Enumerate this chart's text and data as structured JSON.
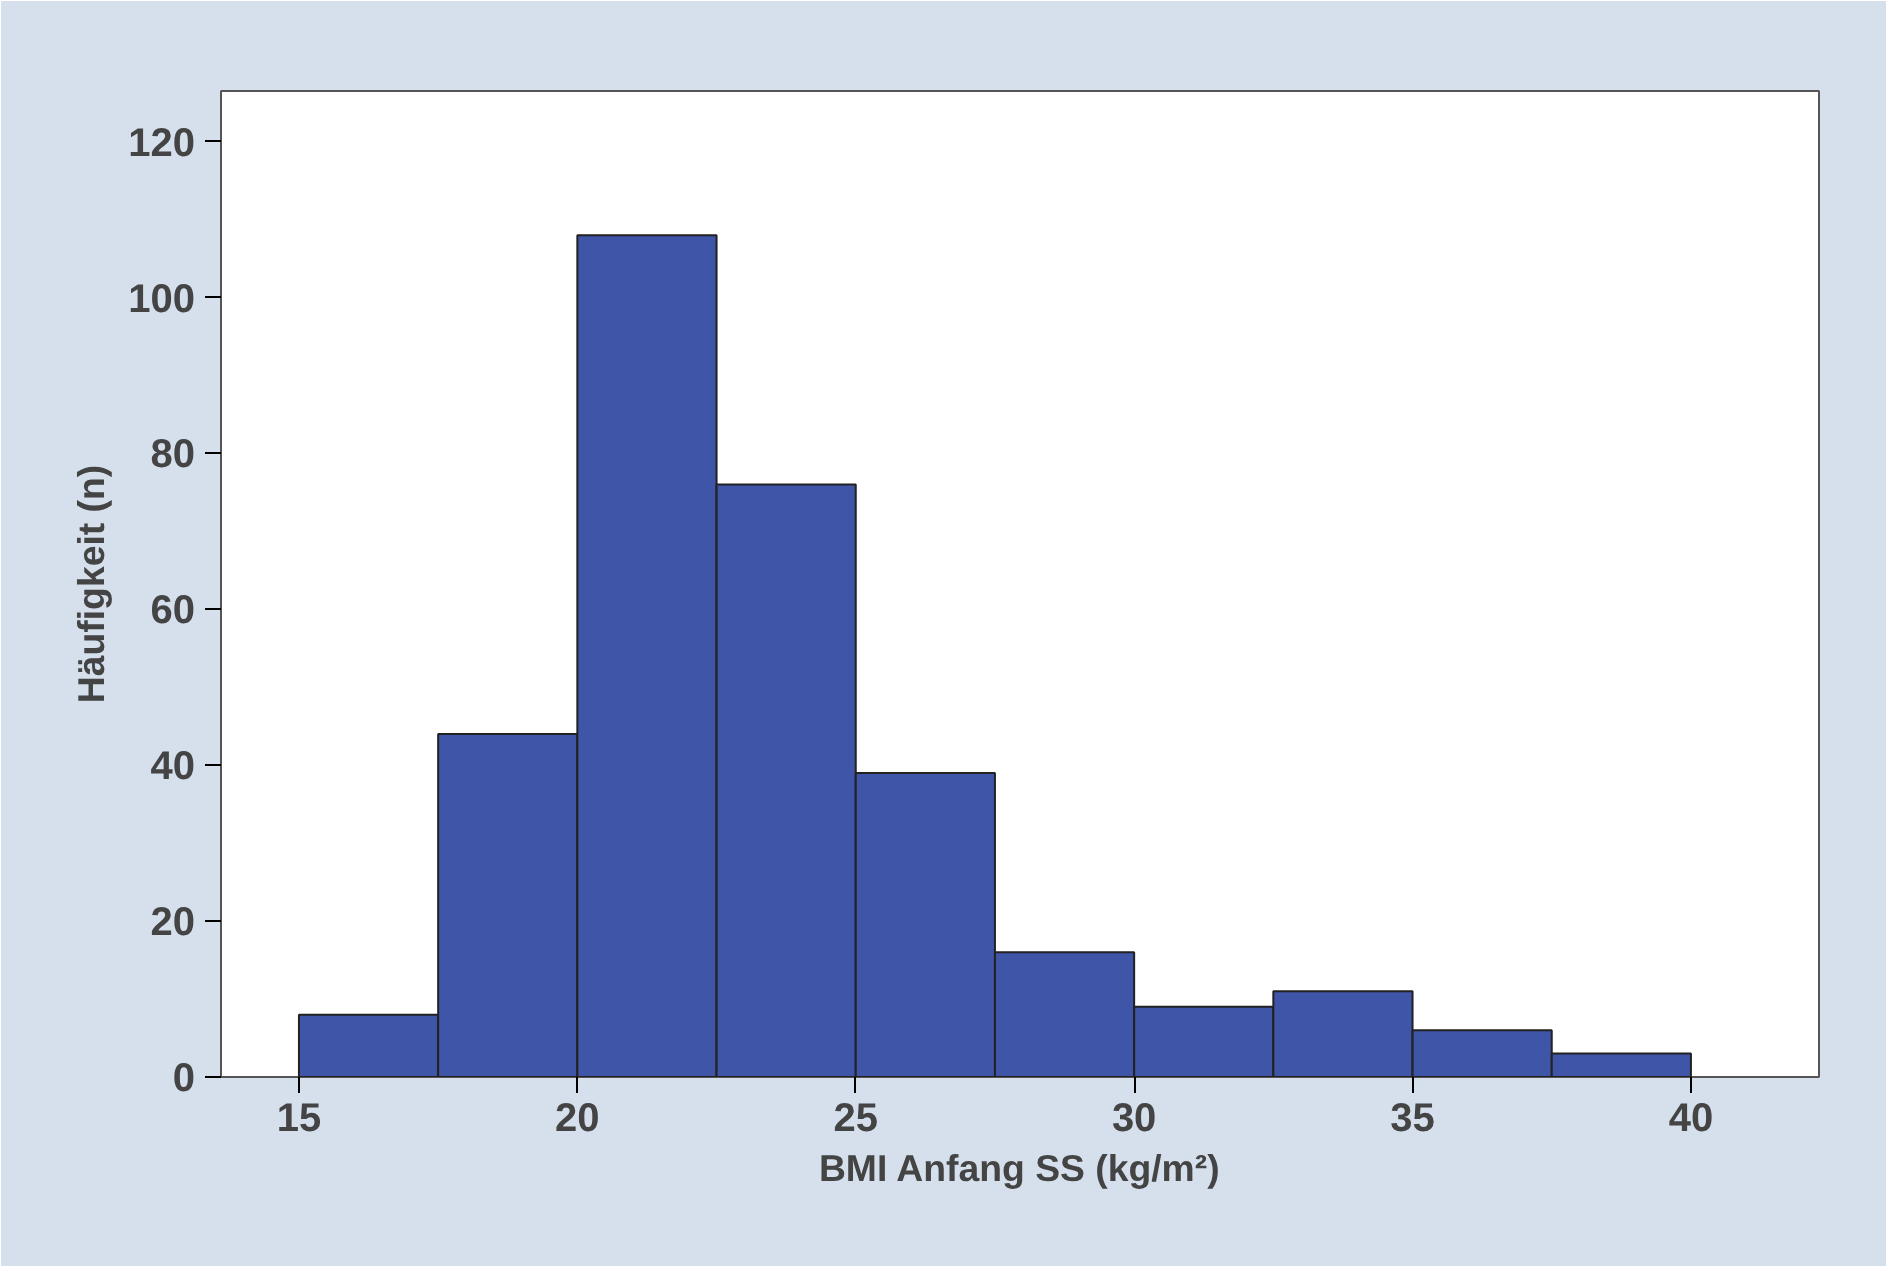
{
  "chart_data": {
    "type": "histogram",
    "xlabel": "BMI Anfang SS (kg/m²)",
    "ylabel": "Häufigkeit (n)",
    "bins": [
      15,
      17.5,
      20,
      22.5,
      25,
      27.5,
      30,
      32.5,
      35,
      37.5,
      40
    ],
    "values": [
      8,
      44,
      108,
      76,
      39,
      16,
      9,
      11,
      6,
      3
    ],
    "color": "#3f55a8",
    "xlim": [
      13.6,
      42.3
    ],
    "ylim": [
      0,
      126.5
    ],
    "xticks": [
      15,
      20,
      25,
      30,
      35,
      40
    ],
    "yticks": [
      0,
      20,
      40,
      60,
      80,
      100,
      120
    ],
    "grid": false
  }
}
